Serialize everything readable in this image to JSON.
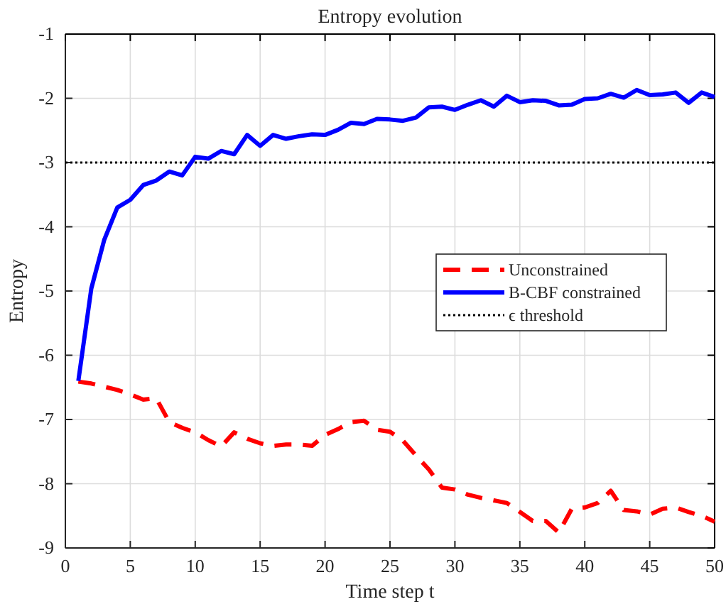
{
  "chart_data": {
    "type": "line",
    "title": "Entropy evolution",
    "xlabel": "Time step t",
    "ylabel": "Entropy",
    "x": [
      1,
      2,
      3,
      4,
      5,
      6,
      7,
      8,
      9,
      10,
      11,
      12,
      13,
      14,
      15,
      16,
      17,
      18,
      19,
      20,
      21,
      22,
      23,
      24,
      25,
      26,
      27,
      28,
      29,
      30,
      31,
      32,
      33,
      34,
      35,
      36,
      37,
      38,
      39,
      40,
      41,
      42,
      43,
      44,
      45,
      46,
      47,
      48,
      49,
      50
    ],
    "series": [
      {
        "name": "Unconstrained",
        "color": "#ff0000",
        "line_style": "dashed",
        "values": [
          -6.41,
          -6.44,
          -6.49,
          -6.54,
          -6.61,
          -6.69,
          -6.67,
          -7.04,
          -7.13,
          -7.2,
          -7.32,
          -7.42,
          -7.2,
          -7.3,
          -7.37,
          -7.41,
          -7.39,
          -7.39,
          -7.41,
          -7.24,
          -7.15,
          -7.04,
          -7.02,
          -7.16,
          -7.19,
          -7.33,
          -7.56,
          -7.78,
          -8.06,
          -8.09,
          -8.17,
          -8.22,
          -8.26,
          -8.3,
          -8.44,
          -8.58,
          -8.58,
          -8.76,
          -8.39,
          -8.37,
          -8.3,
          -8.11,
          -8.41,
          -8.43,
          -8.48,
          -8.39,
          -8.37,
          -8.44,
          -8.5,
          -8.59
        ]
      },
      {
        "name": "B-CBF constrained",
        "color": "#0000ff",
        "line_style": "solid",
        "values": [
          -6.4,
          -4.96,
          -4.2,
          -3.7,
          -3.58,
          -3.35,
          -3.28,
          -3.14,
          -3.2,
          -2.91,
          -2.94,
          -2.82,
          -2.87,
          -2.57,
          -2.74,
          -2.57,
          -2.63,
          -2.59,
          -2.56,
          -2.57,
          -2.49,
          -2.38,
          -2.4,
          -2.32,
          -2.33,
          -2.35,
          -2.3,
          -2.14,
          -2.13,
          -2.18,
          -2.1,
          -2.03,
          -2.13,
          -1.96,
          -2.06,
          -2.03,
          -2.04,
          -2.11,
          -2.1,
          -2.01,
          -2.0,
          -1.93,
          -1.99,
          -1.87,
          -1.95,
          -1.94,
          -1.91,
          -2.07,
          -1.91,
          -1.98
        ]
      }
    ],
    "ref_lines": [
      {
        "axis": "y",
        "value": -3,
        "label": "ϵ threshold",
        "color": "#000000",
        "line_style": "dotted"
      }
    ],
    "xlim": [
      0,
      50
    ],
    "xticks": [
      0,
      5,
      10,
      15,
      20,
      25,
      30,
      35,
      40,
      45,
      50
    ],
    "ylim": [
      -9,
      -1
    ],
    "yticks": [
      -9,
      -8,
      -7,
      -6,
      -5,
      -4,
      -3,
      -2,
      -1
    ],
    "grid": true,
    "legend": "right",
    "marker": "none"
  }
}
